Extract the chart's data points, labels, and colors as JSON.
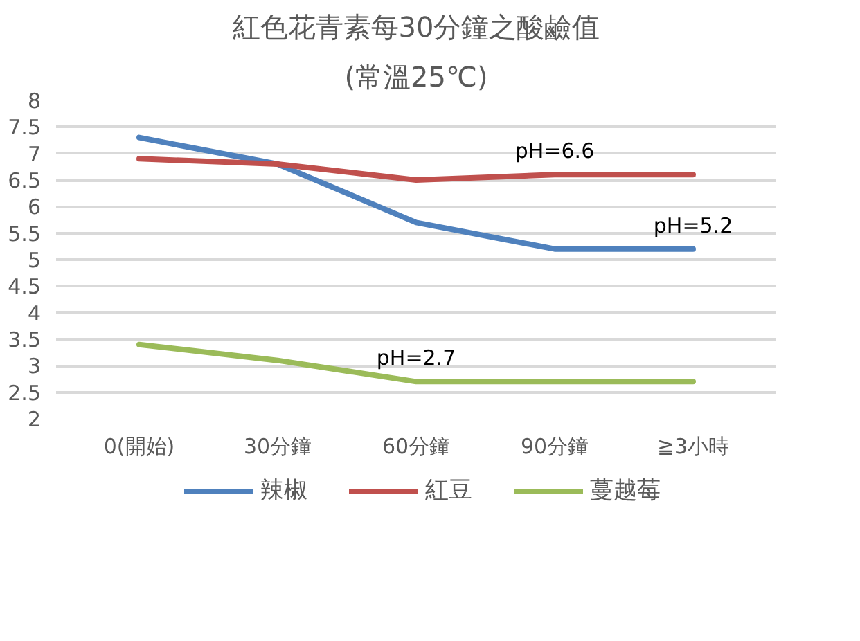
{
  "chart_data": {
    "type": "line",
    "title": "紅色花青素每30分鐘之酸鹼值",
    "subtitle": "(常溫25℃)",
    "categories": [
      "0(開始)",
      "30分鐘",
      "60分鐘",
      "90分鐘",
      "≧3小時"
    ],
    "series": [
      {
        "name": "辣椒",
        "color": "#4f81bd",
        "values": [
          7.3,
          6.8,
          5.7,
          5.2,
          5.2
        ]
      },
      {
        "name": "紅豆",
        "color": "#c0504d",
        "values": [
          6.9,
          6.8,
          6.5,
          6.6,
          6.6
        ]
      },
      {
        "name": "蔓越莓",
        "color": "#9bbb59",
        "values": [
          3.4,
          3.1,
          2.7,
          2.7,
          2.7
        ]
      }
    ],
    "ylim": [
      2,
      8
    ],
    "yticks": [
      2,
      2.5,
      3,
      3.5,
      4,
      4.5,
      5,
      5.5,
      6,
      6.5,
      7,
      7.5,
      8
    ],
    "grid": "y",
    "legend": "bottom",
    "annotations": [
      {
        "text": "pH=6.6",
        "x": "90分鐘",
        "y": 6.6
      },
      {
        "text": "pH=5.2",
        "x": "≧3小時",
        "y": 5.2
      },
      {
        "text": "pH=2.7",
        "x": "60分鐘",
        "y": 2.7
      }
    ]
  }
}
